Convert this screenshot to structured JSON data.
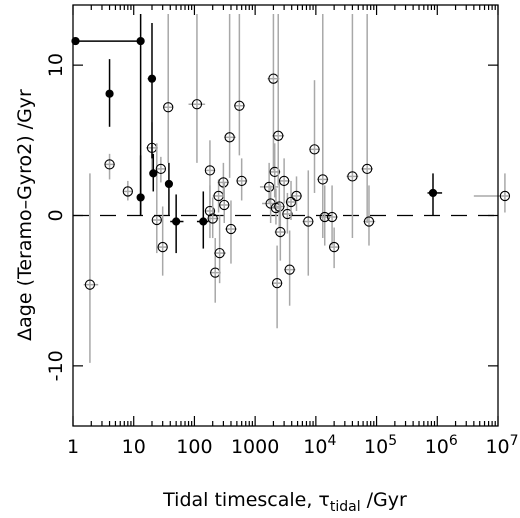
{
  "chart_data": {
    "type": "scatter",
    "xlabel": "Tidal timescale, τ",
    "xlabel_sub": "tidal",
    "xlabel_unit": " /Gyr",
    "ylabel": "Δage (Teramo–Gyro2) /Gyr",
    "x_scale": "log",
    "xlim": [
      1,
      10000000
    ],
    "ylim": [
      -14,
      14
    ],
    "x_tick_labels": [
      {
        "base": "1",
        "exp": ""
      },
      {
        "base": "10",
        "exp": ""
      },
      {
        "base": "100",
        "exp": ""
      },
      {
        "base": "1000",
        "exp": ""
      },
      {
        "base": "10",
        "exp": "4"
      },
      {
        "base": "10",
        "exp": "5"
      },
      {
        "base": "10",
        "exp": "6"
      },
      {
        "base": "10",
        "exp": "7"
      }
    ],
    "y_ticks": [
      -10,
      0,
      10
    ],
    "reference_line_y": 0,
    "series": [
      {
        "marker": "filled",
        "points": [
          {
            "x": 1.1,
            "y": 11.6,
            "xlo": 1.1,
            "xhi": 13,
            "ylo": 11.6,
            "yhi": 11.6
          },
          {
            "x": 4,
            "y": 8.1,
            "xlo": 4,
            "xhi": 4,
            "ylo": 5.9,
            "yhi": 10.4
          },
          {
            "x": 13,
            "y": 11.6,
            "xlo": 13,
            "xhi": 13,
            "ylo": 0,
            "yhi": 13.4
          },
          {
            "x": 13,
            "y": 1.2,
            "xlo": 13,
            "xhi": 13,
            "ylo": 0,
            "yhi": 4.0
          },
          {
            "x": 20,
            "y": 9.1,
            "xlo": 17,
            "xhi": 23,
            "ylo": 3.8,
            "yhi": 12.8
          },
          {
            "x": 21,
            "y": 2.8,
            "xlo": 21,
            "xhi": 21,
            "ylo": 1.6,
            "yhi": 4.1
          },
          {
            "x": 38,
            "y": 2.1,
            "xlo": 38,
            "xhi": 38,
            "ylo": 0,
            "yhi": 3.5
          },
          {
            "x": 50,
            "y": -0.4,
            "xlo": 40,
            "xhi": 66,
            "ylo": -2.5,
            "yhi": 1.4
          },
          {
            "x": 140,
            "y": -0.4,
            "xlo": 110,
            "xhi": 170,
            "ylo": -2.2,
            "yhi": 1.6
          },
          {
            "x": 850000,
            "y": 1.5,
            "xlo": 690000,
            "xhi": 1200000,
            "ylo": 0,
            "yhi": 2.8
          }
        ]
      },
      {
        "marker": "open",
        "points": [
          {
            "x": 1.9,
            "y": -4.6,
            "xlo": 1.5,
            "xhi": 2.6,
            "ylo": -9.8,
            "yhi": 2.8
          },
          {
            "x": 4,
            "y": 3.4,
            "xlo": 3.4,
            "xhi": 4.9,
            "ylo": 2.4,
            "yhi": 4.1
          },
          {
            "x": 8,
            "y": 1.6,
            "xlo": 6.7,
            "xhi": 9.5,
            "ylo": 1.0,
            "yhi": 2.3
          },
          {
            "x": 20,
            "y": 4.5,
            "xlo": 16,
            "xhi": 25,
            "ylo": 3.0,
            "yhi": 6.2
          },
          {
            "x": 24,
            "y": -0.3,
            "xlo": 20,
            "xhi": 29,
            "ylo": -2.5,
            "yhi": 4.8
          },
          {
            "x": 28,
            "y": 3.1,
            "xlo": 24,
            "xhi": 33,
            "ylo": 2.2,
            "yhi": 3.9
          },
          {
            "x": 30,
            "y": -2.1,
            "xlo": 25,
            "xhi": 35,
            "ylo": -4.0,
            "yhi": 0.6
          },
          {
            "x": 37,
            "y": 7.2,
            "xlo": 31,
            "xhi": 44,
            "ylo": 3.5,
            "yhi": 13.4
          },
          {
            "x": 110,
            "y": 7.4,
            "xlo": 80,
            "xhi": 150,
            "ylo": 3.5,
            "yhi": 13.4
          },
          {
            "x": 180,
            "y": 3.0,
            "xlo": 150,
            "xhi": 220,
            "ylo": 0.8,
            "yhi": 5.0
          },
          {
            "x": 180,
            "y": 0.3,
            "xlo": 150,
            "xhi": 220,
            "ylo": -1.5,
            "yhi": 2.0
          },
          {
            "x": 200,
            "y": -0.2,
            "xlo": 165,
            "xhi": 250,
            "ylo": -1.5,
            "yhi": 1.2
          },
          {
            "x": 220,
            "y": -3.8,
            "xlo": 180,
            "xhi": 270,
            "ylo": -5.8,
            "yhi": -1.5
          },
          {
            "x": 250,
            "y": 1.3,
            "xlo": 200,
            "xhi": 310,
            "ylo": 0.2,
            "yhi": 2.4
          },
          {
            "x": 260,
            "y": -2.5,
            "xlo": 210,
            "xhi": 330,
            "ylo": -4.5,
            "yhi": 0
          },
          {
            "x": 300,
            "y": 2.2,
            "xlo": 240,
            "xhi": 370,
            "ylo": 1.2,
            "yhi": 3.5
          },
          {
            "x": 310,
            "y": 0.7,
            "xlo": 250,
            "xhi": 380,
            "ylo": -0.5,
            "yhi": 2.2
          },
          {
            "x": 380,
            "y": 5.2,
            "xlo": 310,
            "xhi": 480,
            "ylo": 2.5,
            "yhi": 13.4
          },
          {
            "x": 400,
            "y": -0.9,
            "xlo": 320,
            "xhi": 500,
            "ylo": -3.2,
            "yhi": 1.0
          },
          {
            "x": 550,
            "y": 7.3,
            "xlo": 450,
            "xhi": 680,
            "ylo": 4.0,
            "yhi": 13.4
          },
          {
            "x": 600,
            "y": 2.3,
            "xlo": 490,
            "xhi": 740,
            "ylo": 1.0,
            "yhi": 3.8
          },
          {
            "x": 1700,
            "y": 1.9,
            "xlo": 1200,
            "xhi": 2400,
            "ylo": 0.8,
            "yhi": 3.5
          },
          {
            "x": 1800,
            "y": 0.8,
            "xlo": 1300,
            "xhi": 2500,
            "ylo": -0.5,
            "yhi": 2.0
          },
          {
            "x": 2000,
            "y": 9.1,
            "xlo": 1600,
            "xhi": 2500,
            "ylo": 3.0,
            "yhi": 13.4
          },
          {
            "x": 2100,
            "y": 2.9,
            "xlo": 1700,
            "xhi": 2600,
            "ylo": 1.2,
            "yhi": 4.8
          },
          {
            "x": 2200,
            "y": 0.5,
            "xlo": 1800,
            "xhi": 2700,
            "ylo": -0.6,
            "yhi": 1.8
          },
          {
            "x": 2300,
            "y": -4.5,
            "xlo": 1900,
            "xhi": 2800,
            "ylo": -7.5,
            "yhi": -2.0
          },
          {
            "x": 2400,
            "y": 5.3,
            "xlo": 1900,
            "xhi": 3000,
            "ylo": 2.0,
            "yhi": 13.4
          },
          {
            "x": 2500,
            "y": 0.6,
            "xlo": 2000,
            "xhi": 3100,
            "ylo": -0.8,
            "yhi": 2.3
          },
          {
            "x": 2600,
            "y": -1.1,
            "xlo": 2100,
            "xhi": 3200,
            "ylo": -3.0,
            "yhi": 0.8
          },
          {
            "x": 3000,
            "y": 2.3,
            "xlo": 2400,
            "xhi": 3700,
            "ylo": 0.8,
            "yhi": 3.8
          },
          {
            "x": 3400,
            "y": 0.1,
            "xlo": 2800,
            "xhi": 4200,
            "ylo": -1.2,
            "yhi": 1.5
          },
          {
            "x": 3700,
            "y": -3.6,
            "xlo": 3000,
            "xhi": 4600,
            "ylo": -6.0,
            "yhi": -1.0
          },
          {
            "x": 3900,
            "y": 0.9,
            "xlo": 3200,
            "xhi": 4800,
            "ylo": -0.3,
            "yhi": 2.3
          },
          {
            "x": 4800,
            "y": 1.3,
            "xlo": 4000,
            "xhi": 5900,
            "ylo": 0.3,
            "yhi": 2.6
          },
          {
            "x": 7500,
            "y": -0.4,
            "xlo": 6000,
            "xhi": 9200,
            "ylo": -4.0,
            "yhi": 3.0
          },
          {
            "x": 9500,
            "y": 4.4,
            "xlo": 7800,
            "xhi": 11600,
            "ylo": 1.5,
            "yhi": 9.0
          },
          {
            "x": 13000,
            "y": 2.4,
            "xlo": 10500,
            "xhi": 16000,
            "ylo": -1.5,
            "yhi": 13.4
          },
          {
            "x": 14000,
            "y": -0.1,
            "xlo": 11500,
            "xhi": 17000,
            "ylo": -2.0,
            "yhi": 2.0
          },
          {
            "x": 18500,
            "y": -0.1,
            "xlo": 15000,
            "xhi": 23000,
            "ylo": -2.0,
            "yhi": 2.0
          },
          {
            "x": 20000,
            "y": -2.1,
            "xlo": 16500,
            "xhi": 24500,
            "ylo": -3.5,
            "yhi": -0.8
          },
          {
            "x": 40000,
            "y": 2.6,
            "xlo": 32000,
            "xhi": 50000,
            "ylo": -1.5,
            "yhi": 13.4
          },
          {
            "x": 70000,
            "y": 3.1,
            "xlo": 56000,
            "xhi": 87000,
            "ylo": -0.5,
            "yhi": 13.4
          },
          {
            "x": 75000,
            "y": -0.4,
            "xlo": 60000,
            "xhi": 95000,
            "ylo": -2.0,
            "yhi": 2.0
          },
          {
            "x": 13000000,
            "y": 1.3,
            "xlo": 4000000,
            "xhi": 15000000,
            "ylo": 0.2,
            "yhi": 2.8
          }
        ]
      }
    ]
  }
}
